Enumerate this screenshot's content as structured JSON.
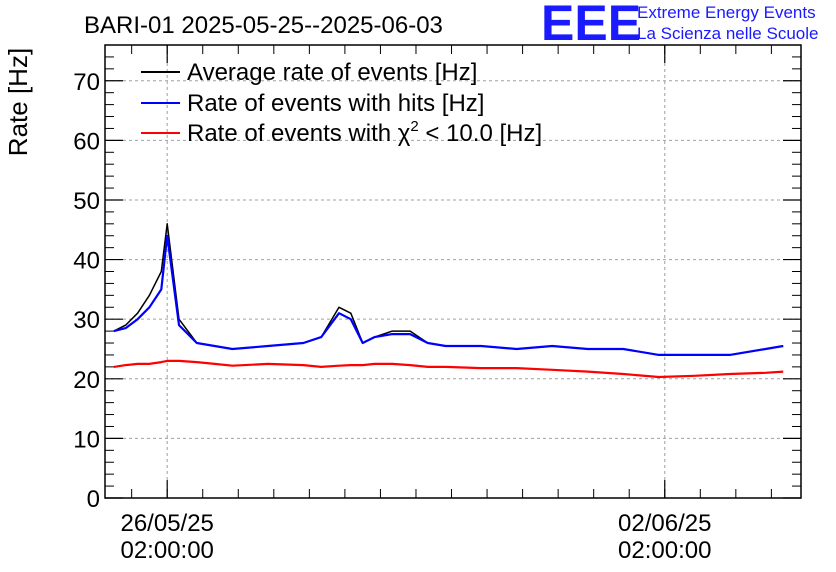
{
  "header": {
    "title": "BARI-01 2025-05-25--2025-06-03",
    "logo_text": "EEE",
    "logo_line1": "Extreme Energy Events",
    "logo_line2": "La Scienza nelle Scuole"
  },
  "colors": {
    "average": "#000000",
    "hits": "#0000ff",
    "chi2": "#ff0000",
    "grid": "#a0a0a0",
    "logo": "#1a1aff"
  },
  "chart_data": {
    "type": "line",
    "title": "BARI-01 2025-05-25--2025-06-03",
    "xlabel": "",
    "ylabel": "Rate [Hz]",
    "ylim": [
      0,
      76
    ],
    "xlim": [
      "2025-05-25 05:00",
      "2025-06-04 00:00"
    ],
    "x_ticks": [
      {
        "x": "2025-05-26 02:00",
        "line1": "26/05/25",
        "line2": "02:00:00"
      },
      {
        "x": "2025-06-02 02:00",
        "line1": "02/06/25",
        "line2": "02:00:00"
      }
    ],
    "y_ticks": [
      0,
      10,
      20,
      30,
      40,
      50,
      60,
      70
    ],
    "grid": true,
    "legend_position": "top-left",
    "legend": [
      {
        "key": "average",
        "label": "Average rate of events [Hz]"
      },
      {
        "key": "hits",
        "label": "Rate of events with hits [Hz]"
      },
      {
        "key": "chi2",
        "label_pre": "Rate of events with ",
        "label_chi": "χ",
        "label_sup": "2",
        "label_post": " < 10.0 [Hz]"
      }
    ],
    "series": [
      {
        "name": "Average rate of events [Hz]",
        "key": "average",
        "x": [
          "2025-05-25 08:00",
          "2025-05-25 12:00",
          "2025-05-25 16:00",
          "2025-05-25 20:00",
          "2025-05-26 00:00",
          "2025-05-26 02:00",
          "2025-05-26 06:00",
          "2025-05-26 12:00",
          "2025-05-26 18:00",
          "2025-05-27 00:00",
          "2025-05-27 12:00",
          "2025-05-28 00:00",
          "2025-05-28 06:00",
          "2025-05-28 12:00",
          "2025-05-28 16:00",
          "2025-05-28 20:00",
          "2025-05-29 00:00",
          "2025-05-29 06:00",
          "2025-05-29 12:00",
          "2025-05-29 18:00",
          "2025-05-30 00:00",
          "2025-05-30 12:00",
          "2025-05-31 00:00",
          "2025-05-31 12:00",
          "2025-06-01 00:00",
          "2025-06-01 12:00",
          "2025-06-02 00:00",
          "2025-06-02 12:00",
          "2025-06-03 00:00",
          "2025-06-03 12:00",
          "2025-06-03 18:00"
        ],
        "values": [
          28.0,
          29.0,
          31.0,
          34.0,
          38.0,
          46.0,
          30.0,
          26.0,
          25.5,
          25.0,
          25.5,
          26.0,
          27.0,
          32.0,
          31.0,
          26.0,
          27.0,
          28.0,
          28.0,
          26.0,
          25.5,
          25.5,
          25.0,
          25.5,
          25.0,
          25.0,
          24.0,
          24.0,
          24.0,
          25.0,
          25.5
        ]
      },
      {
        "name": "Rate of events with hits [Hz]",
        "key": "hits",
        "x": [
          "2025-05-25 08:00",
          "2025-05-25 12:00",
          "2025-05-25 16:00",
          "2025-05-25 20:00",
          "2025-05-26 00:00",
          "2025-05-26 02:00",
          "2025-05-26 06:00",
          "2025-05-26 12:00",
          "2025-05-26 18:00",
          "2025-05-27 00:00",
          "2025-05-27 12:00",
          "2025-05-28 00:00",
          "2025-05-28 06:00",
          "2025-05-28 12:00",
          "2025-05-28 16:00",
          "2025-05-28 20:00",
          "2025-05-29 00:00",
          "2025-05-29 06:00",
          "2025-05-29 12:00",
          "2025-05-29 18:00",
          "2025-05-30 00:00",
          "2025-05-30 12:00",
          "2025-05-31 00:00",
          "2025-05-31 12:00",
          "2025-06-01 00:00",
          "2025-06-01 12:00",
          "2025-06-02 00:00",
          "2025-06-02 12:00",
          "2025-06-03 00:00",
          "2025-06-03 12:00",
          "2025-06-03 18:00"
        ],
        "values": [
          28.0,
          28.5,
          30.0,
          32.0,
          35.0,
          44.0,
          29.0,
          26.0,
          25.5,
          25.0,
          25.5,
          26.0,
          27.0,
          31.0,
          30.0,
          26.0,
          27.0,
          27.5,
          27.5,
          26.0,
          25.5,
          25.5,
          25.0,
          25.5,
          25.0,
          25.0,
          24.0,
          24.0,
          24.0,
          25.0,
          25.5
        ]
      },
      {
        "name": "Rate of events with χ2 < 10.0 [Hz]",
        "key": "chi2",
        "x": [
          "2025-05-25 08:00",
          "2025-05-25 12:00",
          "2025-05-25 16:00",
          "2025-05-25 20:00",
          "2025-05-26 00:00",
          "2025-05-26 02:00",
          "2025-05-26 06:00",
          "2025-05-26 12:00",
          "2025-05-26 18:00",
          "2025-05-27 00:00",
          "2025-05-27 12:00",
          "2025-05-28 00:00",
          "2025-05-28 06:00",
          "2025-05-28 12:00",
          "2025-05-28 16:00",
          "2025-05-28 20:00",
          "2025-05-29 00:00",
          "2025-05-29 06:00",
          "2025-05-29 12:00",
          "2025-05-29 18:00",
          "2025-05-30 00:00",
          "2025-05-30 12:00",
          "2025-05-31 00:00",
          "2025-05-31 12:00",
          "2025-06-01 00:00",
          "2025-06-01 12:00",
          "2025-06-02 00:00",
          "2025-06-02 12:00",
          "2025-06-03 00:00",
          "2025-06-03 12:00",
          "2025-06-03 18:00"
        ],
        "values": [
          22.0,
          22.3,
          22.5,
          22.5,
          22.8,
          23.0,
          23.0,
          22.8,
          22.5,
          22.2,
          22.5,
          22.3,
          22.0,
          22.2,
          22.3,
          22.3,
          22.5,
          22.5,
          22.3,
          22.0,
          22.0,
          21.8,
          21.8,
          21.5,
          21.2,
          20.8,
          20.3,
          20.5,
          20.8,
          21.0,
          21.2
        ]
      }
    ]
  }
}
